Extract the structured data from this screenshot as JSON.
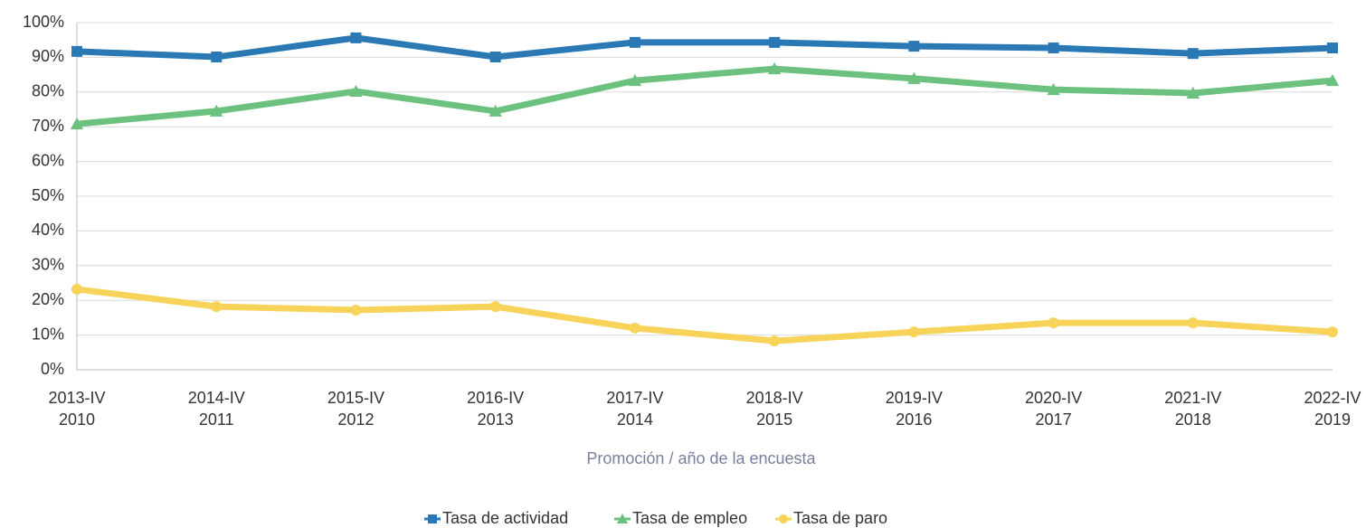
{
  "chart_data": {
    "type": "line",
    "x_label": "Promoción / año de la encuesta",
    "categories": [
      [
        "2013-IV",
        "2010"
      ],
      [
        "2014-IV",
        "2011"
      ],
      [
        "2015-IV",
        "2012"
      ],
      [
        "2016-IV",
        "2013"
      ],
      [
        "2017-IV",
        "2014"
      ],
      [
        "2018-IV",
        "2015"
      ],
      [
        "2019-IV",
        "2016"
      ],
      [
        "2020-IV",
        "2017"
      ],
      [
        "2021-IV",
        "2018"
      ],
      [
        "2022-IV",
        "2019"
      ]
    ],
    "series": [
      {
        "name": "Tasa de actividad",
        "color": "#2a78b4",
        "marker": "square",
        "values": [
          91.7,
          90.1,
          95.6,
          90.1,
          94.3,
          94.3,
          93.2,
          92.7,
          91.1,
          92.7
        ]
      },
      {
        "name": "Tasa de empleo",
        "color": "#6cc17f",
        "marker": "triangle",
        "values": [
          70.8,
          74.5,
          80.2,
          74.5,
          83.3,
          86.7,
          83.9,
          80.7,
          79.7,
          83.3
        ]
      },
      {
        "name": "Tasa de paro",
        "color": "#f7d35a",
        "marker": "circle",
        "values": [
          23.2,
          18.2,
          17.2,
          18.2,
          12.0,
          8.3,
          10.9,
          13.5,
          13.5,
          10.9
        ]
      }
    ],
    "ylim": [
      0,
      100
    ],
    "yticks": [
      {
        "value": 0,
        "label": "0%"
      },
      {
        "value": 10,
        "label": "10%"
      },
      {
        "value": 20,
        "label": "20%"
      },
      {
        "value": 30,
        "label": "30%"
      },
      {
        "value": 40,
        "label": "40%"
      },
      {
        "value": 50,
        "label": "50%"
      },
      {
        "value": 60,
        "label": "60%"
      },
      {
        "value": 70,
        "label": "70%"
      },
      {
        "value": 80,
        "label": "80%"
      },
      {
        "value": 90,
        "label": "90%"
      },
      {
        "value": 100,
        "label": "100%"
      }
    ],
    "grid": true,
    "legend": "bottom"
  }
}
